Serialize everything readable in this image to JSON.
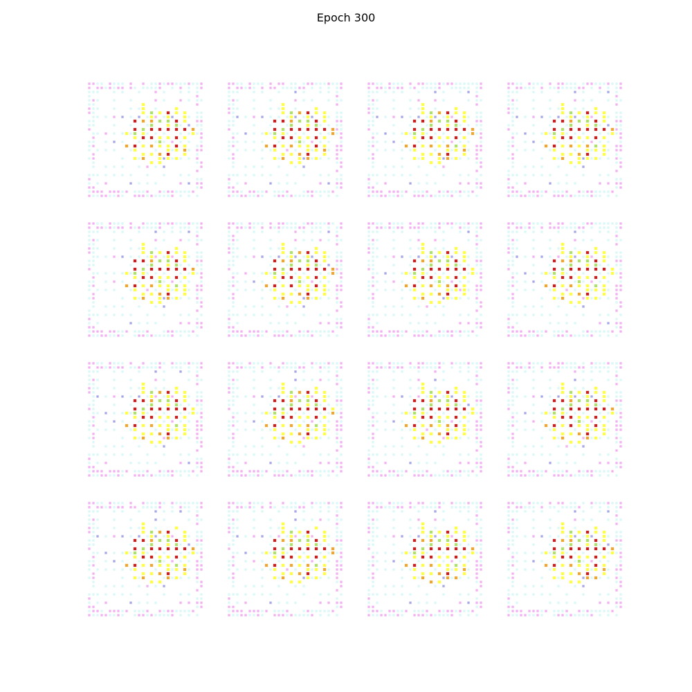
{
  "figure": {
    "title": "Epoch 300"
  },
  "samples": {
    "rows": 4,
    "cols": 4,
    "pixel_grid": 28,
    "colors": {
      "background": "#ffffff",
      "cyan": "#b9f3f3",
      "magenta": "#f08cf0",
      "yellow": "#ffff33",
      "orange": "#f0a020",
      "red": "#d01010",
      "green": "#a8e060",
      "blue": "#a0a0e8"
    }
  }
}
